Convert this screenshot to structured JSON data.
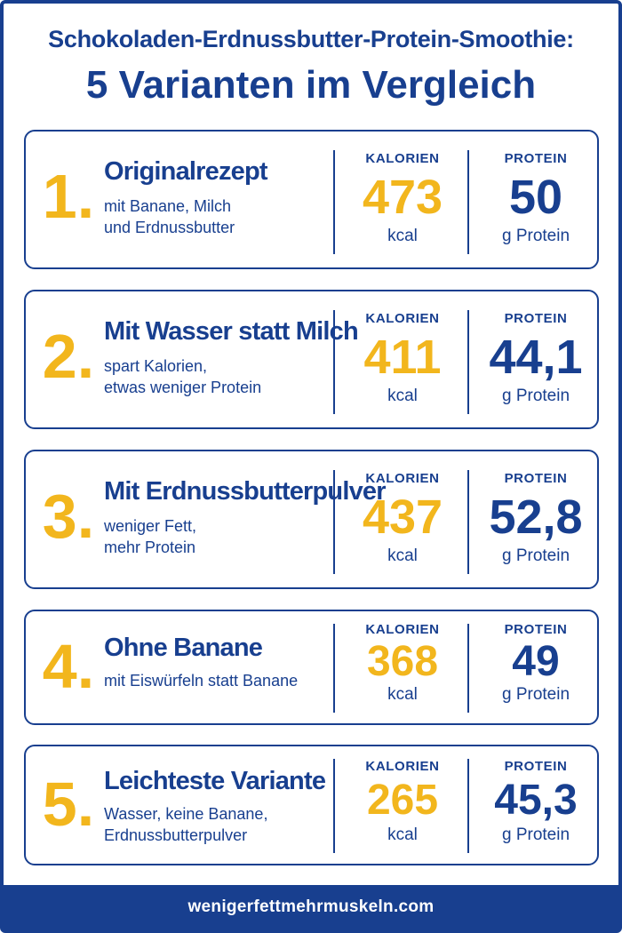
{
  "header": {
    "line1": "Schokoladen-Erdnussbutter-Protein-Smoothie:",
    "line2": "5 Varianten im Vergleich"
  },
  "labels": {
    "calories": "KALORIEN",
    "protein": "PROTEIN",
    "kcal_unit": "kcal",
    "protein_unit": "g Protein"
  },
  "variants": [
    {
      "number": "1.",
      "title": "Originalrezept",
      "sub1": "mit Banane, Milch",
      "sub2": "und Erdnussbutter",
      "calories": "473",
      "protein": "50"
    },
    {
      "number": "2.",
      "title": "Mit Wasser statt Milch",
      "sub1": "spart Kalorien,",
      "sub2": "etwas weniger Protein",
      "calories": "411",
      "protein": "44,1"
    },
    {
      "number": "3.",
      "title": "Mit Erdnussbutterpulver",
      "sub1": "weniger Fett,",
      "sub2": "mehr Protein",
      "calories": "437",
      "protein": "52,8"
    },
    {
      "number": "4.",
      "title": "Ohne Banane",
      "sub1": "mit Eiswürfeln statt Banane",
      "sub2": "",
      "calories": "368",
      "protein": "49"
    },
    {
      "number": "5.",
      "title": "Leichteste Variante",
      "sub1": "Wasser, keine Banane,",
      "sub2": "Erdnussbutterpulver",
      "calories": "265",
      "protein": "45,3"
    }
  ],
  "footer": {
    "url": "wenigerfettmehrmuskeln.com"
  },
  "colors": {
    "navy": "#183f8f",
    "gold": "#f2b61d"
  }
}
